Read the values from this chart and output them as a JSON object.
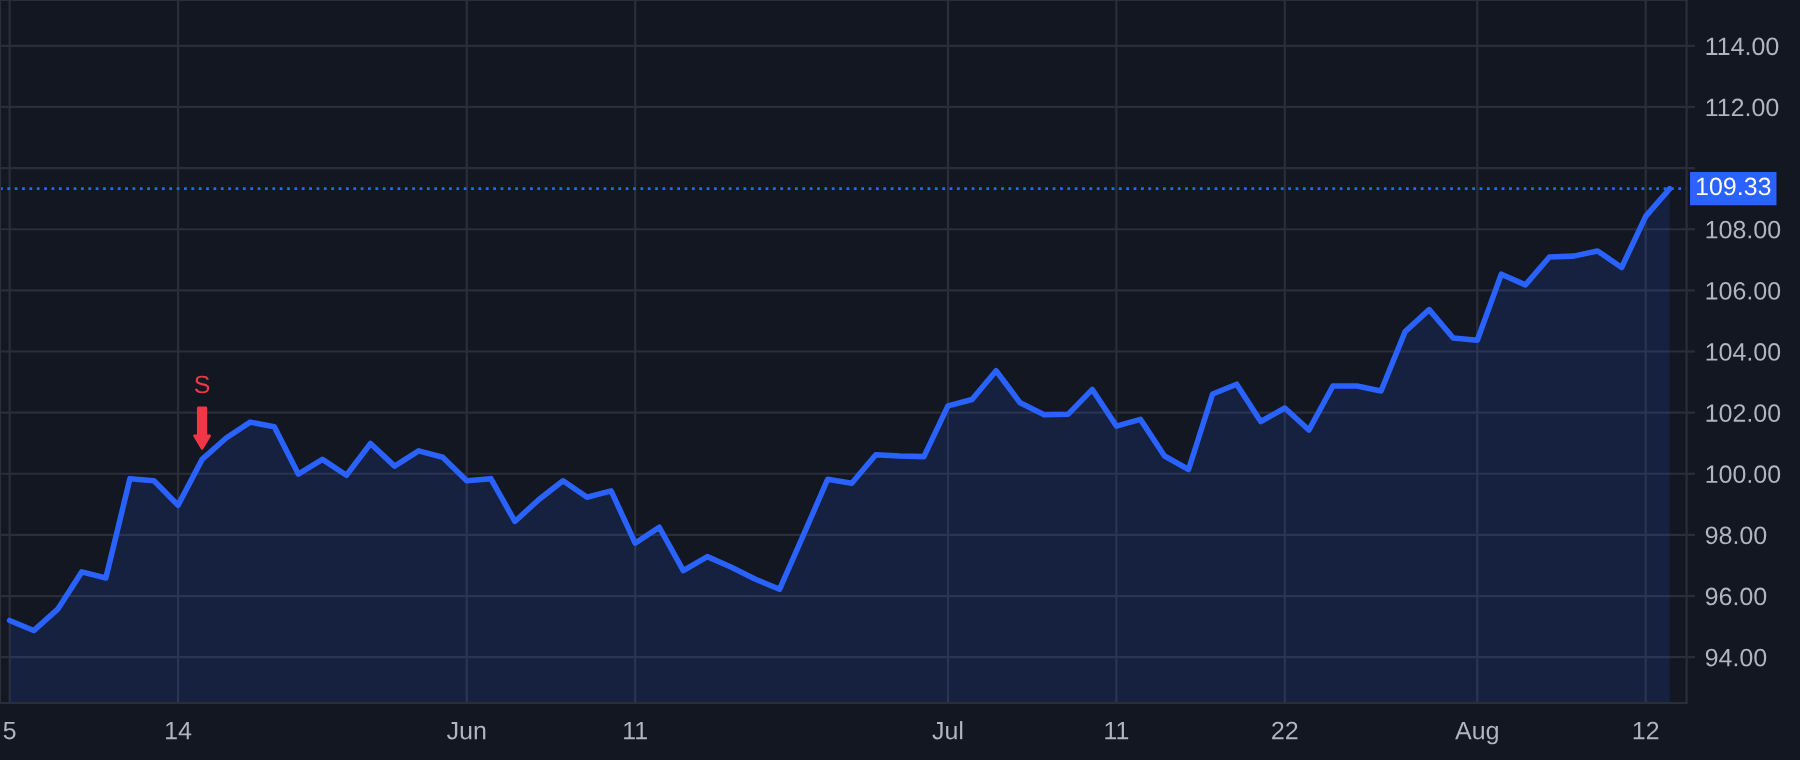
{
  "chart_data": {
    "type": "area",
    "categories": [
      "5",
      null,
      null,
      null,
      null,
      null,
      null,
      "14",
      null,
      null,
      null,
      null,
      null,
      null,
      null,
      null,
      null,
      null,
      null,
      "Jun",
      null,
      null,
      null,
      null,
      null,
      null,
      "11",
      null,
      null,
      null,
      null,
      null,
      null,
      null,
      null,
      null,
      null,
      null,
      null,
      "Jul",
      null,
      null,
      null,
      null,
      null,
      null,
      "11",
      null,
      null,
      null,
      null,
      null,
      null,
      "22",
      null,
      null,
      null,
      null,
      null,
      null,
      null,
      "Aug",
      null,
      null,
      null,
      null,
      null,
      null,
      "12",
      null
    ],
    "series": [
      {
        "color": "#2962ff",
        "values": [
          95.2,
          94.87,
          95.57,
          96.79,
          96.59,
          99.84,
          99.77,
          98.97,
          100.47,
          101.17,
          101.69,
          101.54,
          99.99,
          100.47,
          99.95,
          100.99,
          100.25,
          100.75,
          100.54,
          99.77,
          99.84,
          98.44,
          99.16,
          99.77,
          99.23,
          99.44,
          97.73,
          98.25,
          96.83,
          97.29,
          96.94,
          96.55,
          96.22,
          98.01,
          99.82,
          99.69,
          100.62,
          100.58,
          100.56,
          102.22,
          102.43,
          103.37,
          102.32,
          101.93,
          101.95,
          102.76,
          101.56,
          101.78,
          100.58,
          100.14,
          102.61,
          102.93,
          101.71,
          102.15,
          101.43,
          102.87,
          102.87,
          102.71,
          104.65,
          105.37,
          104.44,
          104.37,
          106.53,
          106.18,
          107.09,
          107.12,
          107.29,
          106.75,
          108.42,
          109.33
        ]
      }
    ],
    "ylim": [
      92.5,
      115.5
    ],
    "yticks": [
      {
        "value": 94,
        "label": "94.00"
      },
      {
        "value": 96,
        "label": "96.00"
      },
      {
        "value": 98,
        "label": "98.00"
      },
      {
        "value": 100,
        "label": "100.00"
      },
      {
        "value": 102,
        "label": "102.00"
      },
      {
        "value": 104,
        "label": "104.00"
      },
      {
        "value": 106,
        "label": "106.00"
      },
      {
        "value": 108,
        "label": "108.00"
      },
      {
        "value": 110,
        "label": null
      },
      {
        "value": 112,
        "label": "112.00"
      },
      {
        "value": 114,
        "label": "114.00"
      }
    ],
    "ref_lines": [
      {
        "axis": "y",
        "value": 109.33,
        "label": "109.33",
        "color": "#2962ff",
        "line_style": "dotted"
      }
    ],
    "annotations": [
      {
        "text": "S",
        "y": 100.47
      }
    ],
    "grid": true,
    "legend": false,
    "marker": "none",
    "line_style": "solid"
  }
}
